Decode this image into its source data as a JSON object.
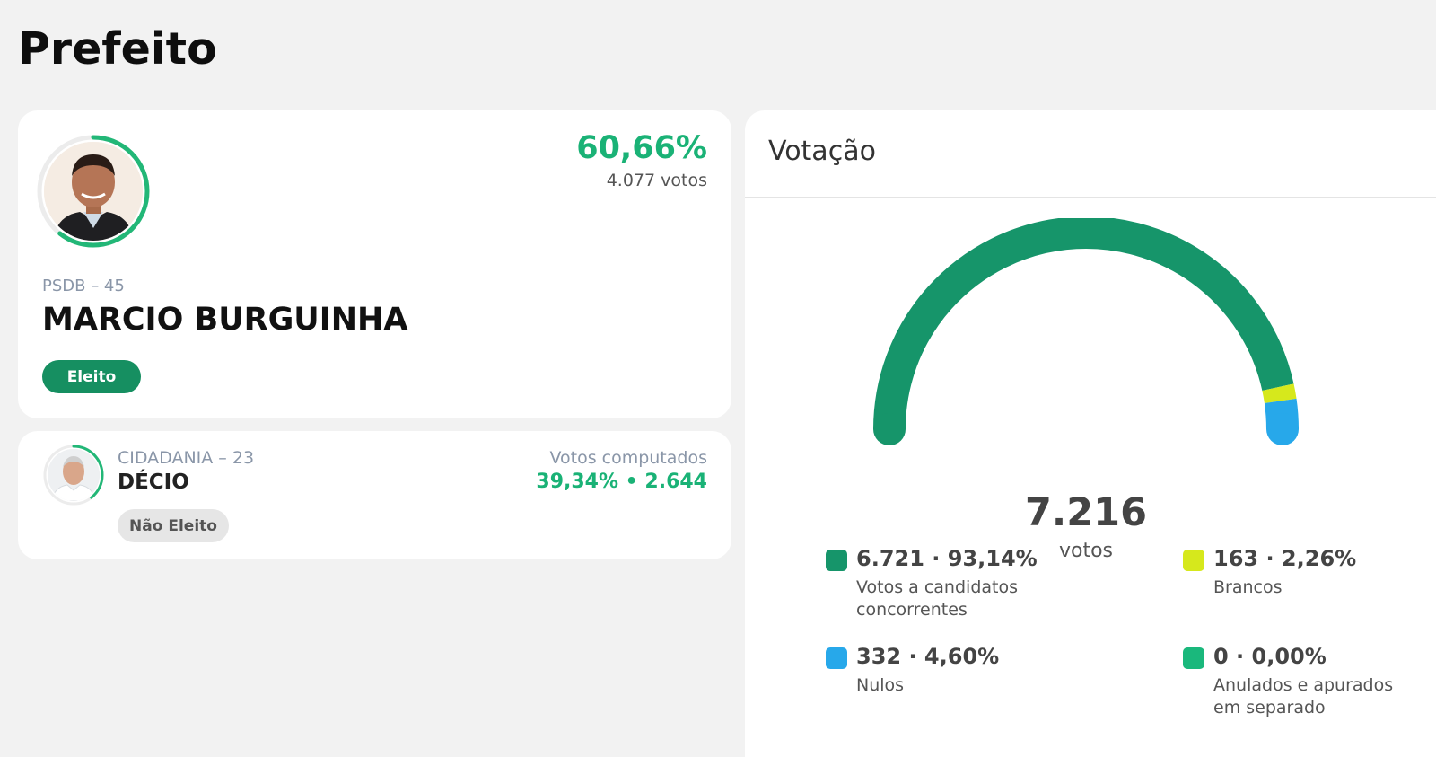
{
  "page": {
    "title": "Prefeito"
  },
  "winner": {
    "percent": "60,66%",
    "votes": "4.077 votos",
    "percent_value": 60.66,
    "party": "PSDB – 45",
    "name": "MARCIO BURGUINHA",
    "status": "Eleito"
  },
  "second": {
    "party": "CIDADANIA – 23",
    "name": "DÉCIO",
    "status": "Não Eleito",
    "votes_label": "Votos computados",
    "votes_summary": "39,34%  •  2.644",
    "percent_value": 39.34
  },
  "votacao": {
    "title": "Votação",
    "total": "7.216",
    "unit": "votos",
    "legend": [
      {
        "value": "6.721 · 93,14%",
        "label": "Votos a candidatos concorrentes",
        "color": "#16956a",
        "share": 93.14
      },
      {
        "value": "163 · 2,26%",
        "label": "Brancos",
        "color": "#d6e81c",
        "share": 2.26
      },
      {
        "value": "332 · 4,60%",
        "label": "Nulos",
        "color": "#27a8ea",
        "share": 4.6
      },
      {
        "value": "0 · 0,00%",
        "label": "Anulados e apurados em separado",
        "color": "#1ab87c",
        "share": 0.0
      }
    ]
  },
  "colors": {
    "accent_green": "#1ab276",
    "eleito_badge": "#168f61",
    "ring_green": "#22b777"
  }
}
